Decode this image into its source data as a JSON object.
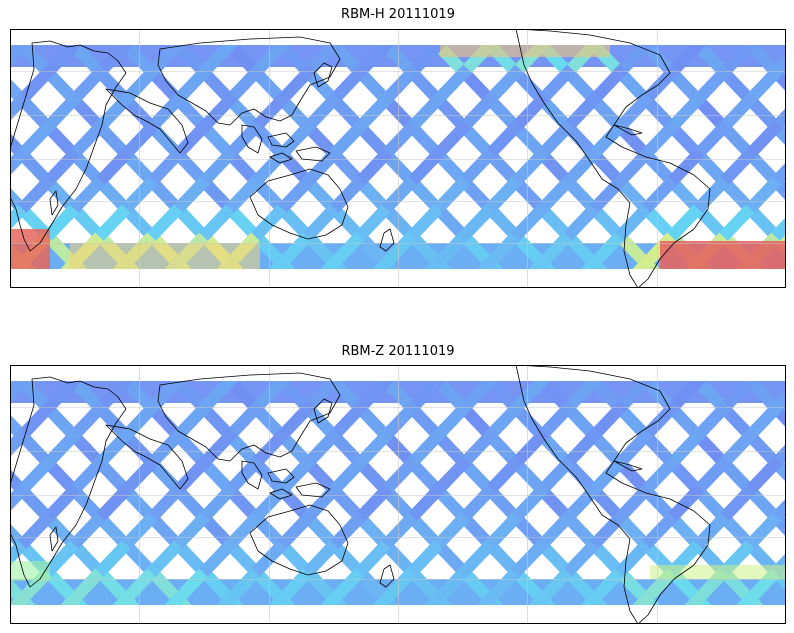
{
  "panels": [
    {
      "title": "RBM-H 20111019",
      "variable": "RBM-H",
      "date": "20111019",
      "hotspots": [
        "south-pacific-low-latitudes",
        "south-atlantic",
        "far-south-west-indian"
      ]
    },
    {
      "title": "RBM-Z 20111019",
      "variable": "RBM-Z",
      "date": "20111019",
      "hotspots": [
        "south-atlantic-weak"
      ]
    }
  ],
  "colormap": {
    "low": "#6060f0",
    "mid": "#58e0f0",
    "high": "#e05050"
  },
  "projection": {
    "type": "plate-carree",
    "grid": true
  }
}
